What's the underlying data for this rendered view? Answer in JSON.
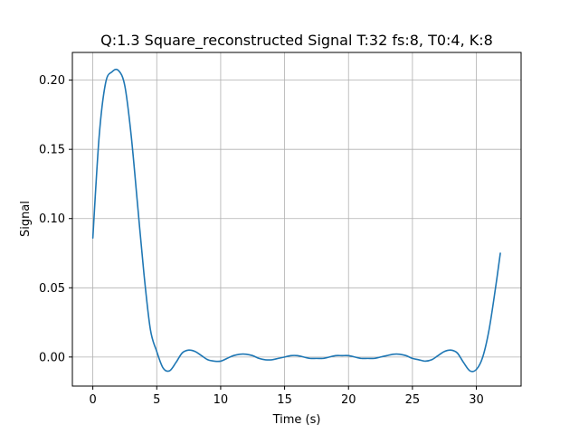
{
  "chart_data": {
    "type": "line",
    "title": "Q:1.3 Square_reconstructed Signal T:32 fs:8, T0:4, K:8",
    "xlabel": "Time (s)",
    "ylabel": "Signal",
    "xlim": [
      -1.6,
      33.5
    ],
    "ylim": [
      -0.021,
      0.22
    ],
    "xticks": [
      0,
      5,
      10,
      15,
      20,
      25,
      30
    ],
    "xtick_labels": [
      "0",
      "5",
      "10",
      "15",
      "20",
      "25",
      "30"
    ],
    "yticks": [
      0.0,
      0.05,
      0.1,
      0.15,
      0.2
    ],
    "ytick_labels": [
      "0.00",
      "0.05",
      "0.10",
      "0.15",
      "0.20"
    ],
    "grid": true,
    "series": [
      {
        "color": "#1f77b4",
        "x": [
          0,
          0.5,
          1,
          1.5,
          2,
          2.5,
          3,
          3.5,
          4,
          4.5,
          5,
          5.5,
          6,
          6.5,
          7,
          7.5,
          8,
          8.5,
          9,
          9.5,
          10,
          10.5,
          11,
          11.5,
          12,
          12.5,
          13,
          13.5,
          14,
          14.5,
          15,
          15.5,
          16,
          16.5,
          17,
          17.5,
          18,
          18.5,
          19,
          19.5,
          20,
          20.5,
          21,
          21.5,
          22,
          22.5,
          23,
          23.5,
          24,
          24.5,
          25,
          25.5,
          26,
          26.5,
          27,
          27.5,
          28,
          28.5,
          29,
          29.5,
          30,
          30.5,
          31,
          31.5,
          31.875
        ],
        "y": [
          0.086,
          0.16,
          0.198,
          0.206,
          0.207,
          0.196,
          0.16,
          0.11,
          0.06,
          0.02,
          0.004,
          -0.008,
          -0.01,
          -0.004,
          0.003,
          0.005,
          0.004,
          0.001,
          -0.002,
          -0.003,
          -0.003,
          -0.001,
          0.001,
          0.002,
          0.002,
          0.001,
          -0.001,
          -0.002,
          -0.002,
          -0.001,
          0.0,
          0.001,
          0.001,
          0.0,
          -0.001,
          -0.001,
          -0.001,
          0.0,
          0.001,
          0.001,
          0.001,
          0.0,
          -0.001,
          -0.001,
          -0.001,
          0.0,
          0.001,
          0.002,
          0.002,
          0.001,
          -0.001,
          -0.002,
          -0.003,
          -0.002,
          0.001,
          0.004,
          0.005,
          0.003,
          -0.004,
          -0.01,
          -0.009,
          0.0,
          0.02,
          0.05,
          0.075
        ]
      }
    ]
  }
}
